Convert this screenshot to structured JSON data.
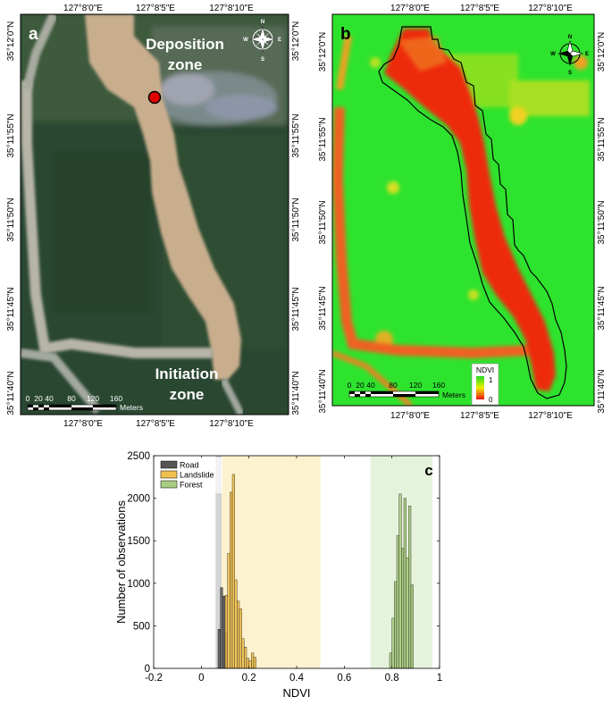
{
  "panel_a": {
    "letter": "a",
    "top_ticks": [
      "127°8'0\"E",
      "127°8'5\"E",
      "127°8'10\"E"
    ],
    "bottom_ticks": [
      "127°8'0\"E",
      "127°8'5\"E",
      "127°8'10\"E"
    ],
    "left_ticks": [
      "35°12'0\"N",
      "35°11'55\"N",
      "35°11'50\"N",
      "35°11'45\"N",
      "35°11'40\"N"
    ],
    "right_ticks": [
      "35°12'0\"N",
      "35°11'55\"N",
      "35°11'50\"N",
      "35°11'45\"N",
      "35°11'40\"N"
    ],
    "deposition_label": [
      "Deposition",
      "zone"
    ],
    "initiation_label": [
      "Initiation",
      "zone"
    ],
    "scale_ticks": [
      "0",
      "20",
      "40",
      "80",
      "120",
      "160"
    ],
    "scale_unit": "Meters",
    "compass": {
      "n": "N",
      "s": "S",
      "e": "E",
      "w": "W"
    }
  },
  "panel_b": {
    "letter": "b",
    "top_ticks": [
      "127°8'0\"E",
      "127°8'5\"E",
      "127°8'10\"E"
    ],
    "bottom_ticks": [
      "127°8'0\"E",
      "127°8'5\"E",
      "127°8'10\"E"
    ],
    "left_ticks": [
      "35°12'0\"N",
      "35°11'55\"N",
      "35°11'50\"N",
      "35°11'45\"N",
      "35°11'40\"N"
    ],
    "right_ticks": [
      "35°12'0\"N",
      "35°11'55\"N",
      "35°11'50\"N",
      "35°11'45\"N",
      "35°11'40\"N"
    ],
    "legend_title": "NDVI",
    "legend_max": "1",
    "legend_min": "0",
    "scale_ticks": [
      "0",
      "20",
      "40",
      "80",
      "120",
      "160"
    ],
    "scale_unit": "Meters",
    "compass": {
      "n": "N",
      "s": "S",
      "e": "E",
      "w": "W"
    }
  },
  "colors": {
    "road": "#555555",
    "landslide": "#f0c050",
    "forest": "#a8cc80",
    "road_band": "#d4d4d4",
    "landslide_band": "#fdf2cf",
    "forest_band": "#e6f3dc",
    "ndvi_high": "#22dd22",
    "ndvi_low": "#ee1111"
  },
  "chart_data": {
    "type": "histogram",
    "panel_letter": "c",
    "xlabel": "NDVI",
    "ylabel": "Number of observations",
    "xlim": [
      -0.2,
      1
    ],
    "ylim": [
      0,
      2500
    ],
    "xticks": [
      -0.2,
      0,
      0.2,
      0.4,
      0.6,
      0.8,
      1
    ],
    "xtick_labels": [
      "-0.2",
      "0",
      "0.2",
      "0.4",
      "0.6",
      "0.8",
      "1"
    ],
    "yticks": [
      0,
      500,
      1000,
      1500,
      2000,
      2500
    ],
    "ytick_labels": [
      "0",
      "500",
      "1000",
      "1500",
      "2000",
      "2500"
    ],
    "legend": [
      "Road",
      "Landslide",
      "Forest"
    ],
    "legend_position": "top-left",
    "bin_width": 0.01,
    "range_bands": [
      {
        "series": "Road",
        "range": [
          0.06,
          0.085
        ]
      },
      {
        "series": "Road",
        "range": [
          0.11,
          0.14
        ]
      },
      {
        "series": "Landslide",
        "range": [
          0.085,
          0.5
        ]
      },
      {
        "series": "Forest",
        "range": [
          0.71,
          0.97
        ]
      }
    ],
    "series": [
      {
        "name": "Road",
        "bin_starts": [
          0.07,
          0.08,
          0.09,
          0.1
        ],
        "values": [
          460,
          950,
          850,
          420
        ]
      },
      {
        "name": "Landslide",
        "bin_starts": [
          0.1,
          0.11,
          0.12,
          0.13,
          0.14,
          0.15,
          0.16,
          0.17,
          0.18,
          0.19,
          0.2,
          0.21,
          0.22
        ],
        "values": [
          860,
          1350,
          2070,
          2280,
          1040,
          790,
          700,
          350,
          250,
          120,
          90,
          180,
          130
        ]
      },
      {
        "name": "Forest",
        "bin_starts": [
          0.79,
          0.8,
          0.81,
          0.82,
          0.83,
          0.84,
          0.85,
          0.86,
          0.87,
          0.88
        ],
        "values": [
          180,
          590,
          1020,
          1560,
          2050,
          1410,
          2000,
          1300,
          1910,
          980
        ]
      }
    ]
  }
}
